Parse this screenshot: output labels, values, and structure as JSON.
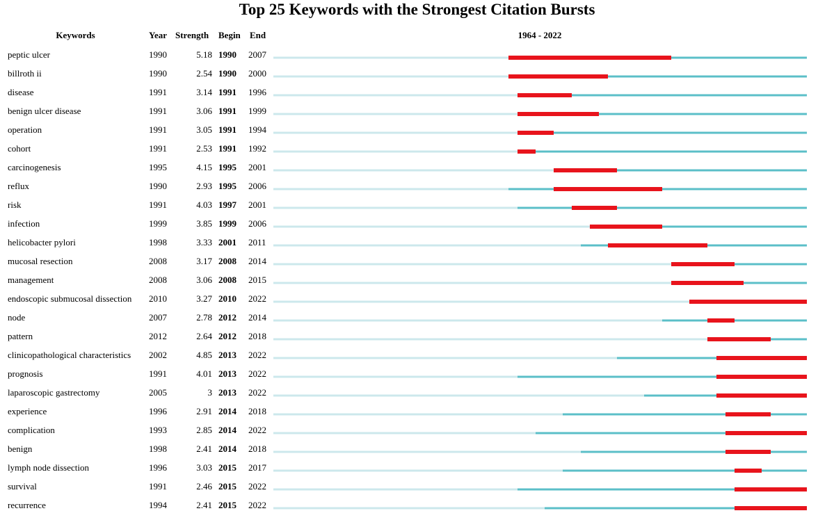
{
  "chart_data": {
    "type": "bar",
    "title": "Top 25 Keywords with the Strongest Citation Bursts",
    "columns": {
      "keyword": "Keywords",
      "year": "Year",
      "strength": "Strength",
      "begin": "Begin",
      "end": "End"
    },
    "timeline_label": "1964 - 2022",
    "timeline_start": 1964,
    "timeline_end": 2022,
    "colors": {
      "burst": "#e8141c",
      "active": "#5bbfc8",
      "inactive": "#cce8ec"
    },
    "rows": [
      {
        "keyword": "peptic ulcer",
        "year": "1990",
        "strength": "5.18",
        "begin": "1990",
        "end": "2007"
      },
      {
        "keyword": "billroth ii",
        "year": "1990",
        "strength": "2.54",
        "begin": "1990",
        "end": "2000"
      },
      {
        "keyword": "disease",
        "year": "1991",
        "strength": "3.14",
        "begin": "1991",
        "end": "1996"
      },
      {
        "keyword": "benign ulcer disease",
        "year": "1991",
        "strength": "3.06",
        "begin": "1991",
        "end": "1999"
      },
      {
        "keyword": "operation",
        "year": "1991",
        "strength": "3.05",
        "begin": "1991",
        "end": "1994"
      },
      {
        "keyword": "cohort",
        "year": "1991",
        "strength": "2.53",
        "begin": "1991",
        "end": "1992"
      },
      {
        "keyword": "carcinogenesis",
        "year": "1995",
        "strength": "4.15",
        "begin": "1995",
        "end": "2001"
      },
      {
        "keyword": "reflux",
        "year": "1990",
        "strength": "2.93",
        "begin": "1995",
        "end": "2006"
      },
      {
        "keyword": "risk",
        "year": "1991",
        "strength": "4.03",
        "begin": "1997",
        "end": "2001"
      },
      {
        "keyword": "infection",
        "year": "1999",
        "strength": "3.85",
        "begin": "1999",
        "end": "2006"
      },
      {
        "keyword": "helicobacter pylori",
        "year": "1998",
        "strength": "3.33",
        "begin": "2001",
        "end": "2011"
      },
      {
        "keyword": "mucosal resection",
        "year": "2008",
        "strength": "3.17",
        "begin": "2008",
        "end": "2014"
      },
      {
        "keyword": "management",
        "year": "2008",
        "strength": "3.06",
        "begin": "2008",
        "end": "2015"
      },
      {
        "keyword": "endoscopic submucosal dissection",
        "year": "2010",
        "strength": "3.27",
        "begin": "2010",
        "end": "2022"
      },
      {
        "keyword": "node",
        "year": "2007",
        "strength": "2.78",
        "begin": "2012",
        "end": "2014"
      },
      {
        "keyword": "pattern",
        "year": "2012",
        "strength": "2.64",
        "begin": "2012",
        "end": "2018"
      },
      {
        "keyword": "clinicopathological characteristics",
        "year": "2002",
        "strength": "4.85",
        "begin": "2013",
        "end": "2022"
      },
      {
        "keyword": "prognosis",
        "year": "1991",
        "strength": "4.01",
        "begin": "2013",
        "end": "2022"
      },
      {
        "keyword": "laparoscopic gastrectomy",
        "year": "2005",
        "strength": "3",
        "begin": "2013",
        "end": "2022"
      },
      {
        "keyword": "experience",
        "year": "1996",
        "strength": "2.91",
        "begin": "2014",
        "end": "2018"
      },
      {
        "keyword": "complication",
        "year": "1993",
        "strength": "2.85",
        "begin": "2014",
        "end": "2022"
      },
      {
        "keyword": "benign",
        "year": "1998",
        "strength": "2.41",
        "begin": "2014",
        "end": "2018"
      },
      {
        "keyword": "lymph node dissection",
        "year": "1996",
        "strength": "3.03",
        "begin": "2015",
        "end": "2017"
      },
      {
        "keyword": "survival",
        "year": "1991",
        "strength": "2.46",
        "begin": "2015",
        "end": "2022"
      },
      {
        "keyword": "recurrence",
        "year": "1994",
        "strength": "2.41",
        "begin": "2015",
        "end": "2022"
      }
    ]
  }
}
